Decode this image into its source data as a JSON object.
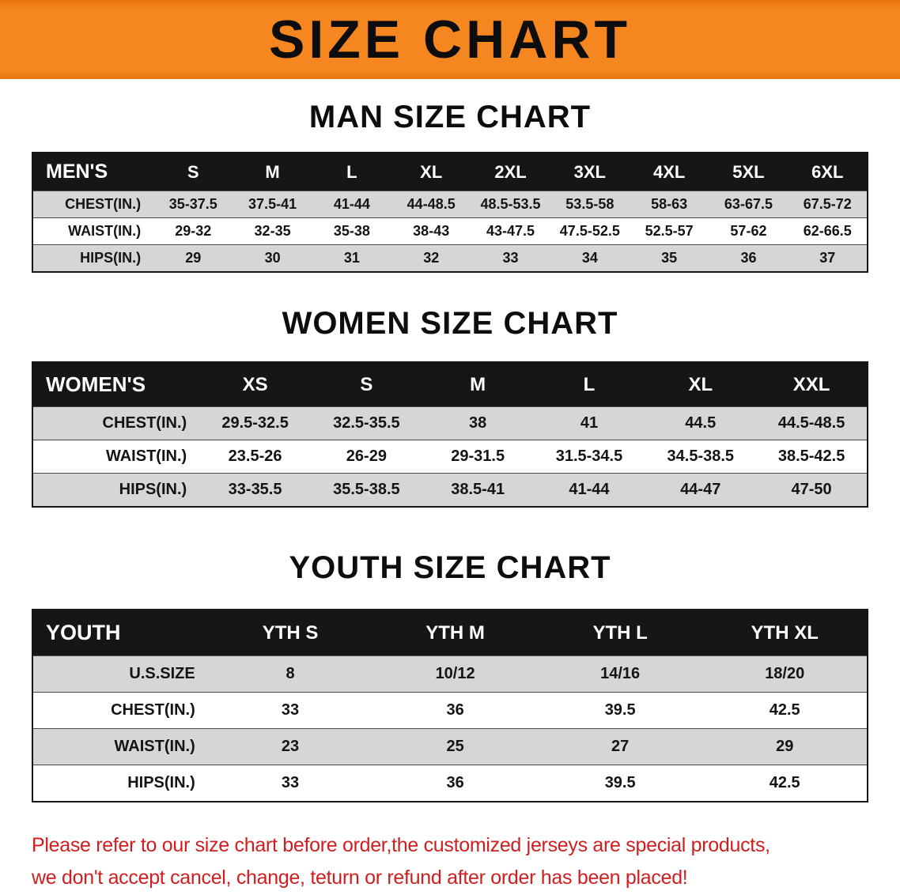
{
  "banner": {
    "title": "SIZE CHART"
  },
  "colors": {
    "banner_bg": "#f6861f",
    "table_header_bg": "#161616",
    "row_alt_bg": "#d6d6d6",
    "disclaimer_text": "#d01e1e"
  },
  "sections": [
    {
      "heading": "MAN SIZE CHART",
      "table": {
        "header": [
          "MEN'S",
          "S",
          "M",
          "L",
          "XL",
          "2XL",
          "3XL",
          "4XL",
          "5XL",
          "6XL"
        ],
        "rows": [
          [
            "CHEST(IN.)",
            "35-37.5",
            "37.5-41",
            "41-44",
            "44-48.5",
            "48.5-53.5",
            "53.5-58",
            "58-63",
            "63-67.5",
            "67.5-72"
          ],
          [
            "WAIST(IN.)",
            "29-32",
            "32-35",
            "35-38",
            "38-43",
            "43-47.5",
            "47.5-52.5",
            "52.5-57",
            "57-62",
            "62-66.5"
          ],
          [
            "HIPS(IN.)",
            "29",
            "30",
            "31",
            "32",
            "33",
            "34",
            "35",
            "36",
            "37"
          ]
        ]
      }
    },
    {
      "heading": "WOMEN SIZE CHART",
      "table": {
        "header": [
          "WOMEN'S",
          "XS",
          "S",
          "M",
          "L",
          "XL",
          "XXL"
        ],
        "rows": [
          [
            "CHEST(IN.)",
            "29.5-32.5",
            "32.5-35.5",
            "38",
            "41",
            "44.5",
            "44.5-48.5"
          ],
          [
            "WAIST(IN.)",
            "23.5-26",
            "26-29",
            "29-31.5",
            "31.5-34.5",
            "34.5-38.5",
            "38.5-42.5"
          ],
          [
            "HIPS(IN.)",
            "33-35.5",
            "35.5-38.5",
            "38.5-41",
            "41-44",
            "44-47",
            "47-50"
          ]
        ]
      }
    },
    {
      "heading": "YOUTH SIZE CHART",
      "table": {
        "header": [
          "YOUTH",
          "YTH S",
          "YTH M",
          "YTH L",
          "YTH XL"
        ],
        "rows": [
          [
            "U.S.SIZE",
            "8",
            "10/12",
            "14/16",
            "18/20"
          ],
          [
            "CHEST(IN.)",
            "33",
            "36",
            "39.5",
            "42.5"
          ],
          [
            "WAIST(IN.)",
            "23",
            "25",
            "27",
            "29"
          ],
          [
            "HIPS(IN.)",
            "33",
            "36",
            "39.5",
            "42.5"
          ]
        ]
      }
    }
  ],
  "disclaimer": {
    "line1": "Please refer to our size chart before order,the customized jerseys are special products,",
    "line2": "we don't accept cancel, change, teturn or refund after order has been placed!"
  }
}
